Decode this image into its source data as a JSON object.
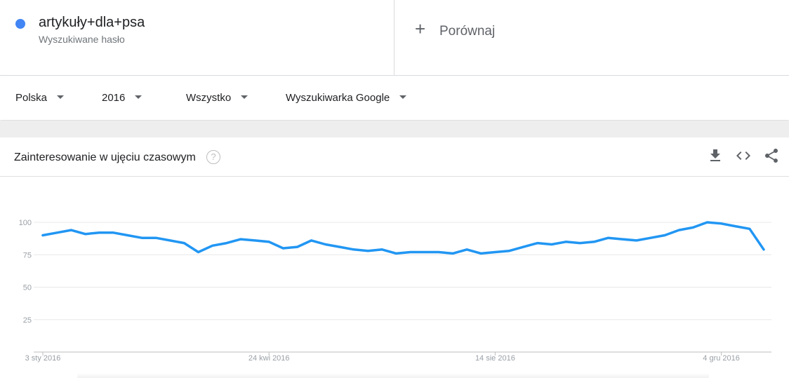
{
  "search_term": {
    "title": "artykuły+dla+psa",
    "subtitle": "Wyszukiwane hasło",
    "color": "#4285f4"
  },
  "compare": {
    "icon": "plus-icon",
    "label": "Porównaj"
  },
  "filters": [
    {
      "label": "Polska"
    },
    {
      "label": "2016"
    },
    {
      "label": "Wszystko"
    },
    {
      "label": "Wyszukiwarka Google"
    }
  ],
  "card": {
    "title": "Zainteresowanie w ujęciu czasowym",
    "help_icon": "help-icon",
    "help_glyph": "?",
    "tools": [
      "download-icon",
      "embed-icon",
      "share-icon"
    ]
  },
  "chart_data": {
    "type": "line",
    "title": "",
    "xlabel": "",
    "ylabel": "",
    "ylim": [
      0,
      100
    ],
    "yticks": [
      25,
      50,
      75,
      100
    ],
    "grid": true,
    "line_color": "#2196f3",
    "xticks": [
      {
        "label": "3 sty 2016",
        "index": 0
      },
      {
        "label": "24 kwi 2016",
        "index": 16
      },
      {
        "label": "14 sie 2016",
        "index": 32
      },
      {
        "label": "4 gru 2016",
        "index": 48
      }
    ],
    "series": [
      {
        "values": [
          90,
          92,
          94,
          91,
          92,
          92,
          90,
          88,
          88,
          86,
          84,
          77,
          82,
          84,
          87,
          86,
          85,
          80,
          81,
          86,
          83,
          81,
          79,
          78,
          79,
          76,
          77,
          77,
          77,
          76,
          79,
          76,
          77,
          78,
          81,
          84,
          83,
          85,
          84,
          85,
          88,
          87,
          86,
          88,
          90,
          94,
          96,
          100,
          99,
          97,
          95,
          79
        ]
      }
    ]
  }
}
